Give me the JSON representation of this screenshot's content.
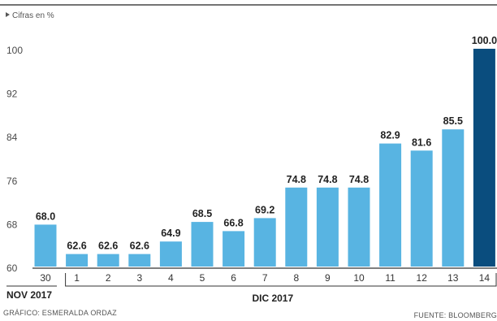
{
  "chart_data": {
    "type": "bar",
    "unit_label": "Cifras en %",
    "categories": [
      "30",
      "1",
      "2",
      "3",
      "4",
      "5",
      "6",
      "7",
      "8",
      "9",
      "10",
      "11",
      "12",
      "13",
      "14"
    ],
    "values": [
      68.0,
      62.6,
      62.6,
      62.6,
      64.9,
      68.5,
      66.8,
      69.2,
      74.8,
      74.8,
      74.8,
      82.9,
      81.6,
      85.5,
      100.0
    ],
    "value_labels": [
      "68.0",
      "62.6",
      "62.6",
      "62.6",
      "64.9",
      "68.5",
      "66.8",
      "69.2",
      "74.8",
      "74.8",
      "74.8",
      "82.9",
      "81.6",
      "85.5",
      "100.0"
    ],
    "yticks": [
      "60",
      "68",
      "76",
      "84",
      "92",
      "100"
    ],
    "ylim": [
      60,
      100
    ],
    "month_groups": [
      {
        "label": "NOV 2017",
        "first": 0,
        "last": 0
      },
      {
        "label": "DIC 2017",
        "first": 1,
        "last": 14
      }
    ],
    "colors": {
      "bar": "#58b4e2",
      "highlight": "#0a4d7e",
      "axis": "#333333"
    },
    "highlight_index": 14,
    "grid": false
  },
  "footer": {
    "credit": "GRÁFICO: ESMERALDA ORDAZ",
    "source": "FUENTE: BLOOMBERG"
  }
}
